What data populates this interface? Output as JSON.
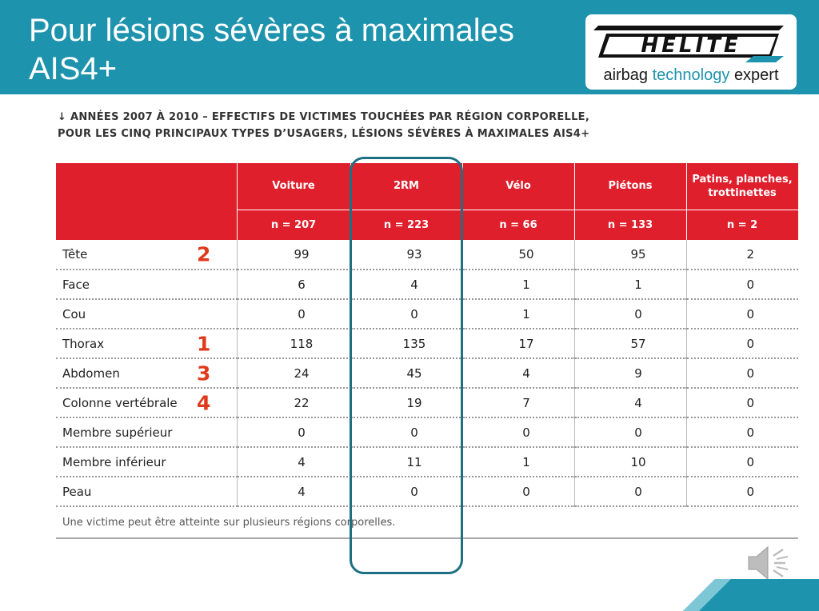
{
  "slide": {
    "title_line1": "Pour lésions sévères à maximales",
    "title_line2": "AIS4+",
    "banner_color": "#1e93ad"
  },
  "logo": {
    "brand": "HELITE",
    "tagline_part1": "airbag",
    "tagline_part2": "technology",
    "tagline_part3": "expert"
  },
  "caption": {
    "line1": "↓ ANNÉES 2007 À 2010 – EFFECTIFS DE VICTIMES TOUCHÉES PAR RÉGION CORPORELLE,",
    "line2": "POUR LES CINQ PRINCIPAUX TYPES D’USAGERS, LÉSIONS SÉVÈRES À MAXIMALES AIS4+"
  },
  "table": {
    "header_color": "#e01f2d",
    "columns": [
      "Voiture",
      "2RM",
      "Vélo",
      "Piétons",
      "Patins, planches, trottinettes"
    ],
    "counts": [
      "n = 207",
      "n = 223",
      "n = 66",
      "n = 133",
      "n = 2"
    ],
    "rows": [
      {
        "region": "Tête",
        "rank": "2",
        "values": [
          "99",
          "93",
          "50",
          "95",
          "2"
        ]
      },
      {
        "region": "Face",
        "rank": "",
        "values": [
          "6",
          "4",
          "1",
          "1",
          "0"
        ]
      },
      {
        "region": "Cou",
        "rank": "",
        "values": [
          "0",
          "0",
          "1",
          "0",
          "0"
        ]
      },
      {
        "region": "Thorax",
        "rank": "1",
        "values": [
          "118",
          "135",
          "17",
          "57",
          "0"
        ]
      },
      {
        "region": "Abdomen",
        "rank": "3",
        "values": [
          "24",
          "45",
          "4",
          "9",
          "0"
        ]
      },
      {
        "region": "Colonne vertébrale",
        "rank": "4",
        "values": [
          "22",
          "19",
          "7",
          "4",
          "0"
        ]
      },
      {
        "region": "Membre supérieur",
        "rank": "",
        "values": [
          "0",
          "0",
          "0",
          "0",
          "0"
        ]
      },
      {
        "region": "Membre inférieur",
        "rank": "",
        "values": [
          "4",
          "11",
          "1",
          "10",
          "0"
        ]
      },
      {
        "region": "Peau",
        "rank": "",
        "values": [
          "4",
          "0",
          "0",
          "0",
          "0"
        ]
      }
    ],
    "note": "Une victime peut être atteinte sur plusieurs régions corporelles."
  },
  "highlight": {
    "column": "2RM",
    "color": "#1f6f83"
  },
  "icons": {
    "audio": "speaker-icon"
  }
}
